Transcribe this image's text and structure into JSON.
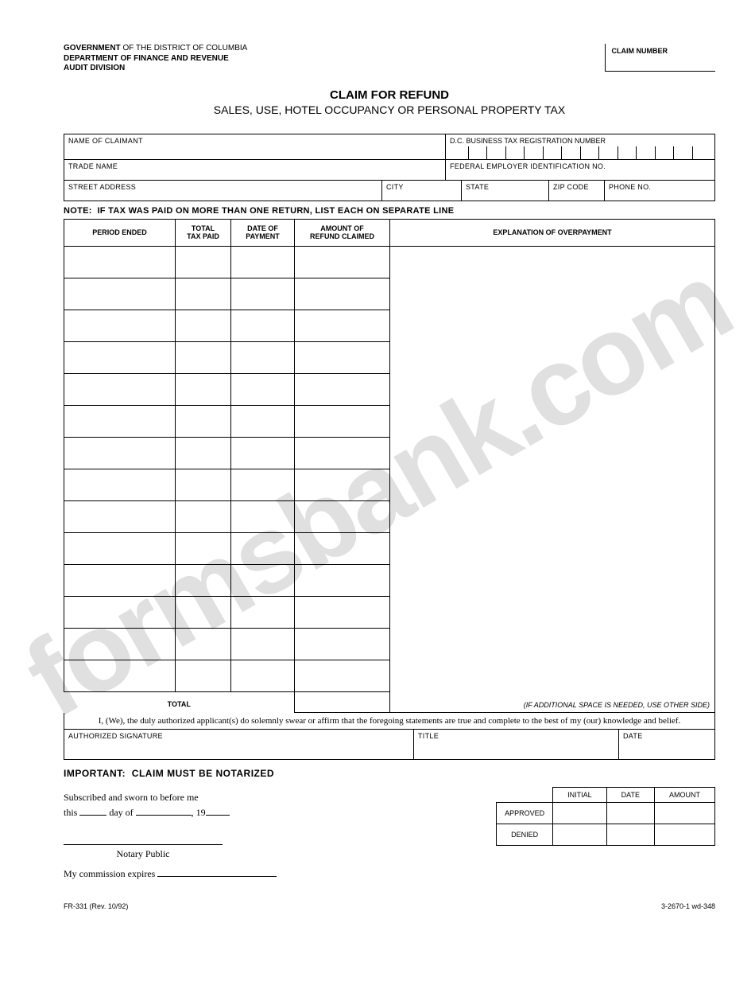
{
  "watermark_text": "formsbank.com",
  "agency": {
    "line1_prefix": "GOVERNMENT",
    "line1_rest": " OF THE DISTRICT OF COLUMBIA",
    "line2": "DEPARTMENT OF FINANCE AND REVENUE",
    "line3": "AUDIT DIVISION"
  },
  "claim_number_label": "CLAIM NUMBER",
  "title": {
    "main": "CLAIM FOR REFUND",
    "sub": "SALES, USE, HOTEL OCCUPANCY OR PERSONAL PROPERTY TAX"
  },
  "fields": {
    "name_of_claimant": "NAME OF CLAIMANT",
    "dc_reg": "D.C. BUSINESS TAX REGISTRATION NUMBER",
    "trade_name": "TRADE NAME",
    "fein": "FEDERAL EMPLOYER IDENTIFICATION NO.",
    "street": "STREET ADDRESS",
    "city": "CITY",
    "state": "STATE",
    "zip": "ZIP CODE",
    "phone": "PHONE NO."
  },
  "note": {
    "prefix": "NOTE:",
    "text": "IF TAX WAS PAID ON MORE THAN ONE RETURN, LIST EACH ON SEPARATE LINE"
  },
  "table_headers": {
    "period": "PERIOD ENDED",
    "tax_paid": "TOTAL\nTAX PAID",
    "date_payment": "DATE OF\nPAYMENT",
    "refund": "AMOUNT OF\nREFUND CLAIMED",
    "explanation": "EXPLANATION OF OVERPAYMENT"
  },
  "data_row_count": 14,
  "total_label": "TOTAL",
  "explanation_footer": "(IF ADDITIONAL SPACE IS NEEDED, USE OTHER SIDE)",
  "affirmation": "I, (We), the duly authorized applicant(s) do solemnly swear or affirm that the foregoing statements are true and complete to the best of my (our) knowledge and belief.",
  "sig": {
    "auth_sig": "AUTHORIZED SIGNATURE",
    "title": "TITLE",
    "date": "DATE"
  },
  "important": {
    "prefix": "IMPORTANT:",
    "text": "CLAIM MUST BE NOTARIZED"
  },
  "notary": {
    "line1": "Subscribed and sworn to before me",
    "line2_a": "this ",
    "line2_b": " day of ",
    "line2_c": ", 19",
    "public": "Notary Public",
    "expires": "My commission expires "
  },
  "approval": {
    "col_initial": "INITIAL",
    "col_date": "DATE",
    "col_amount": "AMOUNT",
    "row_approved": "APPROVED",
    "row_denied": "DENIED"
  },
  "footer": {
    "left": "FR-331 (Rev. 10/92)",
    "right": "3-2670-1 wd-348"
  },
  "colors": {
    "text": "#000000",
    "background": "#ffffff",
    "watermark": "rgba(0,0,0,0.12)",
    "border": "#000000"
  }
}
